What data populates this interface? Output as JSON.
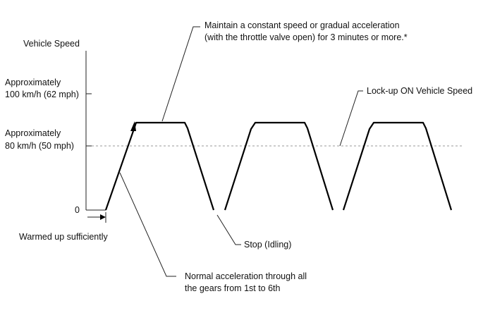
{
  "axis": {
    "y_title": "Vehicle Speed",
    "tick_100_line1": "Approximately",
    "tick_100_line2": "100 km/h (62 mph)",
    "tick_80_line1": "Approximately",
    "tick_80_line2": "80 km/h (50 mph)",
    "tick_zero": "0"
  },
  "annotations": {
    "maintain_line1": "Maintain a constant speed or gradual acceleration",
    "maintain_line2": "(with the throttle valve open) for 3 minutes or more.*",
    "lockup": "Lock-up ON Vehicle Speed",
    "warmed": "Warmed up sufficiently",
    "stop": "Stop (Idling)",
    "normal_line1": "Normal acceleration through all",
    "normal_line2": "the gears from 1st to 6th"
  },
  "colors": {
    "profile": "#000000",
    "lockup_line": "#9a9a9a"
  }
}
